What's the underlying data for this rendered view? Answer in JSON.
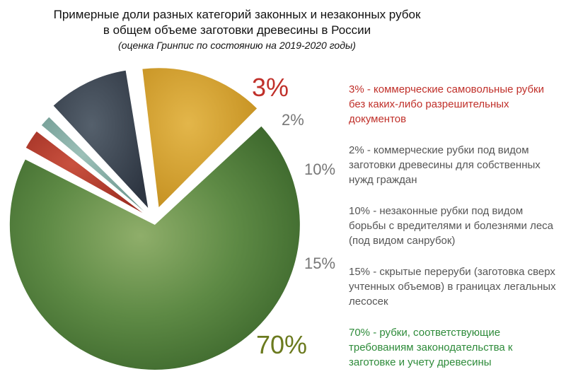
{
  "title": {
    "line1": "Примерные доли разных категорий законных и незаконных рубок",
    "line2": "в общем объеме заготовки древесины в России",
    "subtitle": "(оценка Гринпис по состоянию на 2019-2020 годы)"
  },
  "chart_data": {
    "type": "pie",
    "categories": [
      "коммерческие самовольные рубки без каких-либо разрешительных документов",
      "коммерческие рубки под видом заготовки древесины для собственных нужд граждан",
      "незаконные рубки под видом борьбы с вредителями и болезнями леса (под видом санрубок)",
      "скрытые переруби (заготовка сверх учтенных объемов) в границах легальных лесосек",
      "рубки, соответствующие требованиям законодательства к заготовке и учету древесины"
    ],
    "values": [
      3,
      2,
      10,
      15,
      70
    ],
    "slice_labels": [
      "3%",
      "2%",
      "10%",
      "15%",
      "70%"
    ],
    "colors": [
      "#b5392c",
      "#7fa7a0",
      "#3a4452",
      "#d4a22e",
      "#4f7a3a"
    ],
    "label_colors": [
      "#c0302a",
      "#777777",
      "#777777",
      "#777777",
      "#6b7a1e"
    ],
    "exploded": true,
    "legend_placement": "right",
    "grid": false
  },
  "legend": {
    "items": [
      {
        "text": "3% - коммерческие самовольные рубки без каких-либо разрешительных документов",
        "color": "#c0302a"
      },
      {
        "text": "2% - коммерческие рубки под видом заготовки древесины для собственных нужд граждан",
        "color": "#555555"
      },
      {
        "text": "10% - незаконные рубки под видом борьбы с вредителями и болезнями леса (под видом санрубок)",
        "color": "#555555"
      },
      {
        "text": "15% - скрытые переруби (заготовка сверх учтенных объемов) в границах легальных лесосек",
        "color": "#555555"
      },
      {
        "text": "70% - рубки, соответствующие требованиям законодательства к заготовке и учету древесины",
        "color": "#2e8b3a"
      }
    ]
  }
}
